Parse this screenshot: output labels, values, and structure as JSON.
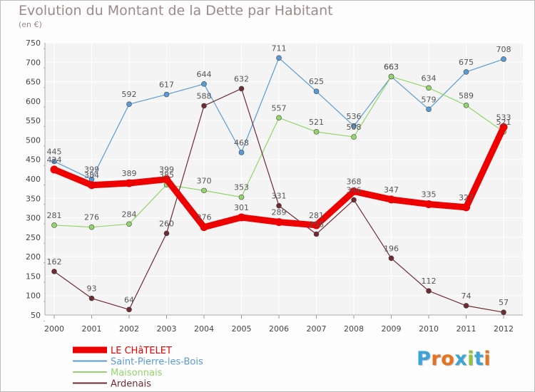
{
  "title": "Evolution du Montant de la Dette par Habitant",
  "subtitle": "(en €)",
  "logo": {
    "text": "Proxiti",
    "colors": [
      "#3ba4d9",
      "#e5731f",
      "#e5731f",
      "#3ba4d9",
      "#8cc63f",
      "#3ba4d9",
      "#e5731f"
    ]
  },
  "chart_data": {
    "type": "line",
    "x": [
      "2000",
      "2001",
      "2002",
      "2003",
      "2004",
      "2005",
      "2006",
      "2007",
      "2008",
      "2009",
      "2010",
      "2011",
      "2012"
    ],
    "ylim": [
      50,
      750
    ],
    "yticks": [
      50,
      100,
      150,
      200,
      250,
      300,
      350,
      400,
      450,
      500,
      550,
      600,
      650,
      700,
      750
    ],
    "grid": true,
    "legend_position": "bottom-left",
    "series": [
      {
        "name": "LE CHâTELET",
        "color": "#ee0000",
        "values": [
          424,
          384,
          389,
          399,
          276,
          301,
          289,
          281,
          368,
          347,
          335,
          327,
          533
        ]
      },
      {
        "name": "Saint-Pierre-les-Bois",
        "color": "#5b9bd5",
        "values": [
          445,
          399,
          592,
          617,
          644,
          468,
          711,
          625,
          536,
          663,
          579,
          675,
          708
        ]
      },
      {
        "name": "Maisonnais",
        "color": "#93d56b",
        "values": [
          281,
          276,
          284,
          385,
          370,
          353,
          557,
          521,
          508,
          663,
          634,
          589,
          521
        ]
      },
      {
        "name": "Ardenais",
        "color": "#6e2b32",
        "values": [
          162,
          93,
          64,
          260,
          588,
          632,
          331,
          258,
          346,
          196,
          112,
          74,
          57
        ]
      }
    ]
  }
}
